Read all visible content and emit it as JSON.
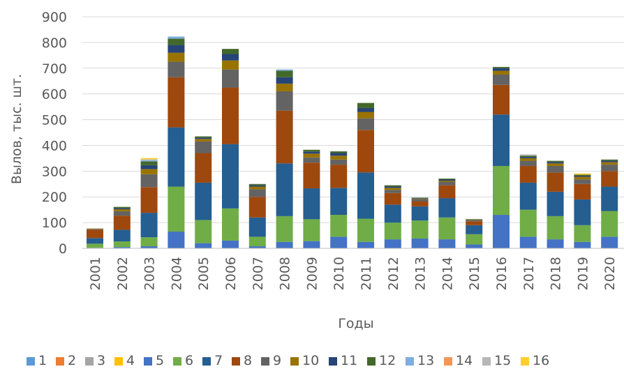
{
  "chart_data": {
    "type": "bar",
    "stacked": true,
    "title": "",
    "xlabel": "Годы",
    "ylabel": "Вылов, тыс. шт.",
    "ylim": [
      0,
      900
    ],
    "yticks": [
      0,
      100,
      200,
      300,
      400,
      500,
      600,
      700,
      800,
      900
    ],
    "grid": true,
    "legend_position": "bottom",
    "categories": [
      "2001",
      "2002",
      "2003",
      "2004",
      "2005",
      "2006",
      "2007",
      "2008",
      "2009",
      "2010",
      "2011",
      "2012",
      "2013",
      "2014",
      "2015",
      "2016",
      "2017",
      "2018",
      "2019",
      "2020"
    ],
    "series": [
      {
        "name": "1",
        "color": "#5b9bd5",
        "values": [
          0,
          0,
          0,
          0,
          0,
          0,
          0,
          0,
          0,
          0,
          0,
          0,
          0,
          0,
          0,
          0,
          0,
          0,
          0,
          0
        ]
      },
      {
        "name": "2",
        "color": "#ed7d31",
        "values": [
          0,
          0,
          0,
          0,
          0,
          0,
          0,
          0,
          0,
          0,
          0,
          0,
          0,
          0,
          0,
          0,
          0,
          0,
          0,
          0
        ]
      },
      {
        "name": "3",
        "color": "#a5a5a5",
        "values": [
          0,
          0,
          0,
          0,
          0,
          0,
          0,
          0,
          0,
          0,
          0,
          0,
          0,
          0,
          0,
          0,
          0,
          0,
          0,
          0
        ]
      },
      {
        "name": "4",
        "color": "#ffc000",
        "values": [
          0,
          0,
          0,
          0,
          0,
          0,
          0,
          0,
          0,
          0,
          0,
          0,
          0,
          0,
          0,
          0,
          0,
          0,
          0,
          0
        ]
      },
      {
        "name": "5",
        "color": "#4472c4",
        "values": [
          2,
          5,
          8,
          65,
          20,
          30,
          8,
          25,
          28,
          45,
          25,
          35,
          38,
          35,
          15,
          130,
          45,
          35,
          25,
          45
        ]
      },
      {
        "name": "6",
        "color": "#70ad47",
        "values": [
          16,
          22,
          35,
          175,
          90,
          125,
          37,
          100,
          85,
          85,
          90,
          65,
          70,
          85,
          40,
          190,
          105,
          90,
          65,
          100
        ]
      },
      {
        "name": "7",
        "color": "#255e91",
        "values": [
          22,
          45,
          95,
          230,
          145,
          250,
          75,
          205,
          120,
          105,
          180,
          70,
          55,
          75,
          35,
          200,
          105,
          95,
          100,
          95
        ]
      },
      {
        "name": "8",
        "color": "#9e480e",
        "values": [
          32,
          55,
          100,
          195,
          115,
          220,
          80,
          205,
          100,
          90,
          165,
          45,
          20,
          50,
          15,
          115,
          65,
          75,
          60,
          60
        ]
      },
      {
        "name": "9",
        "color": "#636363",
        "values": [
          3,
          17,
          50,
          60,
          45,
          70,
          30,
          75,
          20,
          20,
          45,
          12,
          8,
          14,
          5,
          40,
          20,
          25,
          18,
          25
        ]
      },
      {
        "name": "10",
        "color": "#997300",
        "values": [
          2,
          8,
          20,
          35,
          10,
          35,
          10,
          30,
          15,
          15,
          25,
          8,
          2,
          4,
          2,
          15,
          10,
          10,
          10,
          10
        ]
      },
      {
        "name": "11",
        "color": "#264478",
        "values": [
          0,
          4,
          15,
          30,
          5,
          25,
          5,
          25,
          8,
          10,
          15,
          5,
          2,
          4,
          1,
          10,
          5,
          5,
          4,
          5
        ]
      },
      {
        "name": "12",
        "color": "#43682b",
        "values": [
          0,
          5,
          15,
          25,
          5,
          20,
          5,
          25,
          7,
          7,
          20,
          5,
          2,
          4,
          1,
          5,
          5,
          5,
          4,
          5
        ]
      },
      {
        "name": "13",
        "color": "#7cafdd",
        "values": [
          0,
          0,
          4,
          8,
          0,
          0,
          0,
          5,
          0,
          0,
          0,
          0,
          0,
          0,
          0,
          0,
          0,
          0,
          0,
          0
        ]
      },
      {
        "name": "14",
        "color": "#f1975a",
        "values": [
          0,
          0,
          0,
          0,
          0,
          0,
          0,
          0,
          0,
          0,
          0,
          0,
          0,
          0,
          0,
          0,
          0,
          0,
          0,
          0
        ]
      },
      {
        "name": "15",
        "color": "#b7b7b7",
        "values": [
          0,
          0,
          4,
          0,
          0,
          0,
          0,
          0,
          0,
          0,
          0,
          0,
          0,
          0,
          0,
          0,
          5,
          0,
          0,
          0
        ]
      },
      {
        "name": "16",
        "color": "#ffcd33",
        "values": [
          0,
          0,
          5,
          0,
          0,
          0,
          0,
          0,
          0,
          0,
          0,
          0,
          0,
          0,
          0,
          0,
          0,
          0,
          5,
          0
        ]
      }
    ]
  }
}
